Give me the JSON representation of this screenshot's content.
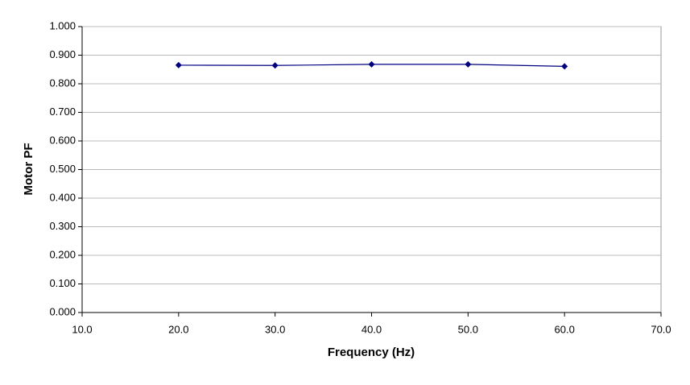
{
  "chart_data": {
    "type": "line",
    "x_label": "Frequency (Hz)",
    "y_label": "Motor PF",
    "x": [
      20,
      30,
      40,
      50,
      60
    ],
    "series": [
      {
        "color": "#000080",
        "values": [
          0.865,
          0.864,
          0.868,
          0.868,
          0.861
        ]
      }
    ],
    "xlim": [
      10,
      70
    ],
    "xticks": [
      {
        "value": 10,
        "label": "10.0"
      },
      {
        "value": 20,
        "label": "20.0"
      },
      {
        "value": 30,
        "label": "30.0"
      },
      {
        "value": 40,
        "label": "40.0"
      },
      {
        "value": 50,
        "label": "50.0"
      },
      {
        "value": 60,
        "label": "60.0"
      },
      {
        "value": 70,
        "label": "70.0"
      }
    ],
    "ylim": [
      0,
      1
    ],
    "yticks": [
      {
        "value": 0,
        "label": "0.000"
      },
      {
        "value": 0.1,
        "label": "0.100"
      },
      {
        "value": 0.2,
        "label": "0.200"
      },
      {
        "value": 0.3,
        "label": "0.300"
      },
      {
        "value": 0.4,
        "label": "0.400"
      },
      {
        "value": 0.5,
        "label": "0.500"
      },
      {
        "value": 0.6,
        "label": "0.600"
      },
      {
        "value": 0.7,
        "label": "0.700"
      },
      {
        "value": 0.8,
        "label": "0.800"
      },
      {
        "value": 0.9,
        "label": "0.900"
      },
      {
        "value": 1,
        "label": "1.000"
      }
    ],
    "grid": true
  }
}
